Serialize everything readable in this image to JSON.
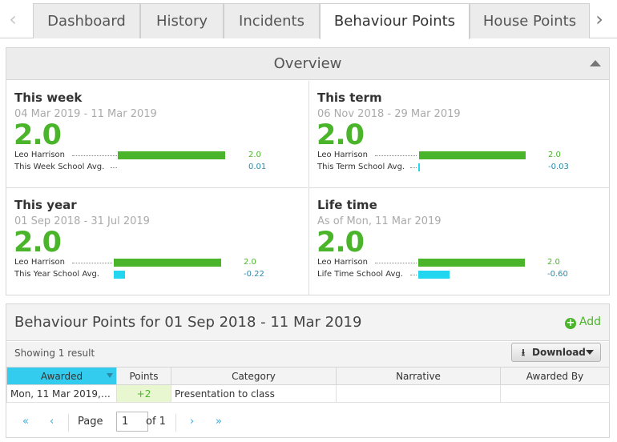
{
  "tabs": {
    "items": [
      "Dashboard",
      "History",
      "Incidents",
      "Behaviour Points",
      "House Points"
    ],
    "active": "Behaviour Points"
  },
  "overview": {
    "title": "Overview",
    "stats": [
      {
        "title": "This week",
        "range": "04 Mar 2019 - 11 Mar 2019",
        "value": "2.0",
        "student_label": "Leo Harrison",
        "student_value": "2.0",
        "avg_label": "This Week School Avg.",
        "avg_value": "0.01"
      },
      {
        "title": "This term",
        "range": "06 Nov 2018 - 29 Mar 2019",
        "value": "2.0",
        "student_label": "Leo Harrison",
        "student_value": "2.0",
        "avg_label": "This Term School Avg.",
        "avg_value": "-0.03"
      },
      {
        "title": "This year",
        "range": "01 Sep 2018 - 31 Jul 2019",
        "value": "2.0",
        "student_label": "Leo Harrison",
        "student_value": "2.0",
        "avg_label": "This Year School Avg.",
        "avg_value": "-0.22"
      },
      {
        "title": "Life time",
        "range": "As of Mon, 11 Mar 2019",
        "value": "2.0",
        "student_label": "Leo Harrison",
        "student_value": "2.0",
        "avg_label": "Life Time School Avg.",
        "avg_value": "-0.60"
      }
    ]
  },
  "points": {
    "title": "Behaviour Points for 01 Sep 2018 - 11 Mar 2019",
    "add_label": "Add",
    "showing": "Showing 1 result",
    "download_label": "Download",
    "columns": [
      "Awarded",
      "Points",
      "Category",
      "Narrative",
      "Awarded By"
    ],
    "rows": [
      {
        "awarded": "Mon, 11 Mar 2019, 1...",
        "points": "+2",
        "category": "Presentation to class",
        "narrative": "",
        "awarded_by": ""
      }
    ],
    "pager": {
      "first": "«",
      "prev": "‹",
      "page_label": "Page",
      "page_value": "1",
      "of_label": "of 1",
      "next": "›",
      "last": "»"
    }
  },
  "colors": {
    "positive": "#4ab52a",
    "negative_bar": "#22d6f0",
    "sorted_header": "#33ccee"
  }
}
